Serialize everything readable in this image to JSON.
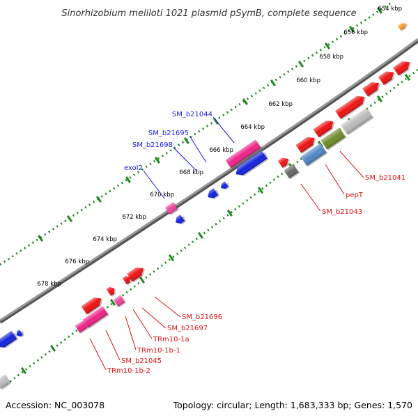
{
  "title": "Sinorhizobium meliloti 1021 plasmid pSymB, complete sequence",
  "footer": {
    "accession": "Accession: NC_003078",
    "summary": "Topology: circular; Length: 1,683,333 bp; Genes: 1,570"
  },
  "ticks": [
    "654 kbp",
    "656 kbp",
    "658 kbp",
    "660 kbp",
    "662 kbp",
    "664 kbp",
    "666 kbp",
    "668 kbp",
    "670 kbp",
    "672 kbp",
    "674 kbp",
    "676 kbp",
    "678 kbp"
  ],
  "labels_blue": [
    "SM_b21044",
    "SM_b21695",
    "SM_b21698",
    "exoI2"
  ],
  "labels_red": [
    "SM_b21041",
    "pepT",
    "SM_b21043",
    "SM_b21696",
    "SM_b21697",
    "TRm10-1a",
    "TRm10-1b-1",
    "SM_b21045",
    "TRm10-1b-2"
  ],
  "colors": {
    "forward_red": "#ee1111",
    "reverse_blue": "#1122dd",
    "magenta": "#ee2288",
    "pink": "#ee4499",
    "gray": "#bbbbbb",
    "darkgray": "#666666",
    "steelblue": "#4f86c4",
    "olive": "#6f8b2a",
    "orange": "#ff9922",
    "tick_green": "#228822",
    "backbone": "#777777",
    "label_blue": "#1a1aee",
    "label_red": "#dd1111"
  }
}
